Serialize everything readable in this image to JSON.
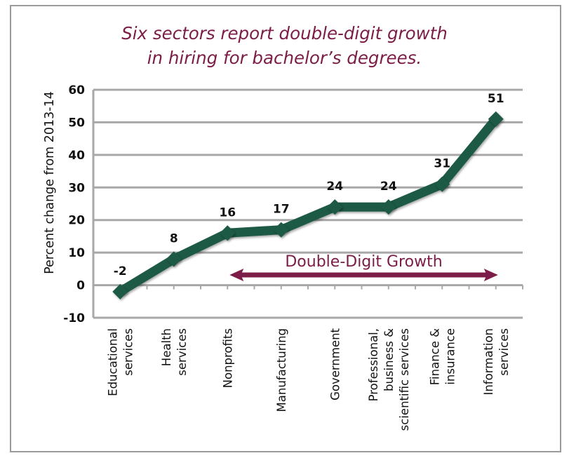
{
  "chart_data": {
    "type": "line",
    "title": "Six sectors report double-digit growth in hiring for bachelor’s degrees.",
    "title_lines": [
      "Six sectors report double-digit growth",
      "in hiring for bachelor’s degrees."
    ],
    "xlabel": "",
    "ylabel": "Percent change from 2013-14",
    "ylim": [
      -10,
      60
    ],
    "yticks": [
      -10,
      0,
      10,
      20,
      30,
      40,
      50,
      60
    ],
    "grid": true,
    "legend": null,
    "categories": [
      [
        "Educational",
        "services"
      ],
      [
        "Health",
        "services"
      ],
      [
        "Nonprofits"
      ],
      [
        "Manufacturing"
      ],
      [
        "Government"
      ],
      [
        "Professional,",
        "business &",
        "scientific services"
      ],
      [
        "Finance &",
        "insurance"
      ],
      [
        "Information",
        "services"
      ]
    ],
    "series": [
      {
        "name": "Percent change",
        "values": [
          -2,
          8,
          16,
          17,
          24,
          24,
          31,
          51
        ]
      }
    ],
    "data_labels": [
      "-2",
      "8",
      "16",
      "17",
      "24",
      "24",
      "31",
      "51"
    ],
    "annotation": {
      "text": "Double-Digit Growth",
      "spans_categories": [
        "Nonprofits",
        "Information services"
      ],
      "style": "double-headed arrow"
    },
    "colors": {
      "line": "#1d5a45",
      "title": "#7b1d46",
      "annotation": "#7b1d46",
      "grid": "#a8a8a8"
    }
  }
}
